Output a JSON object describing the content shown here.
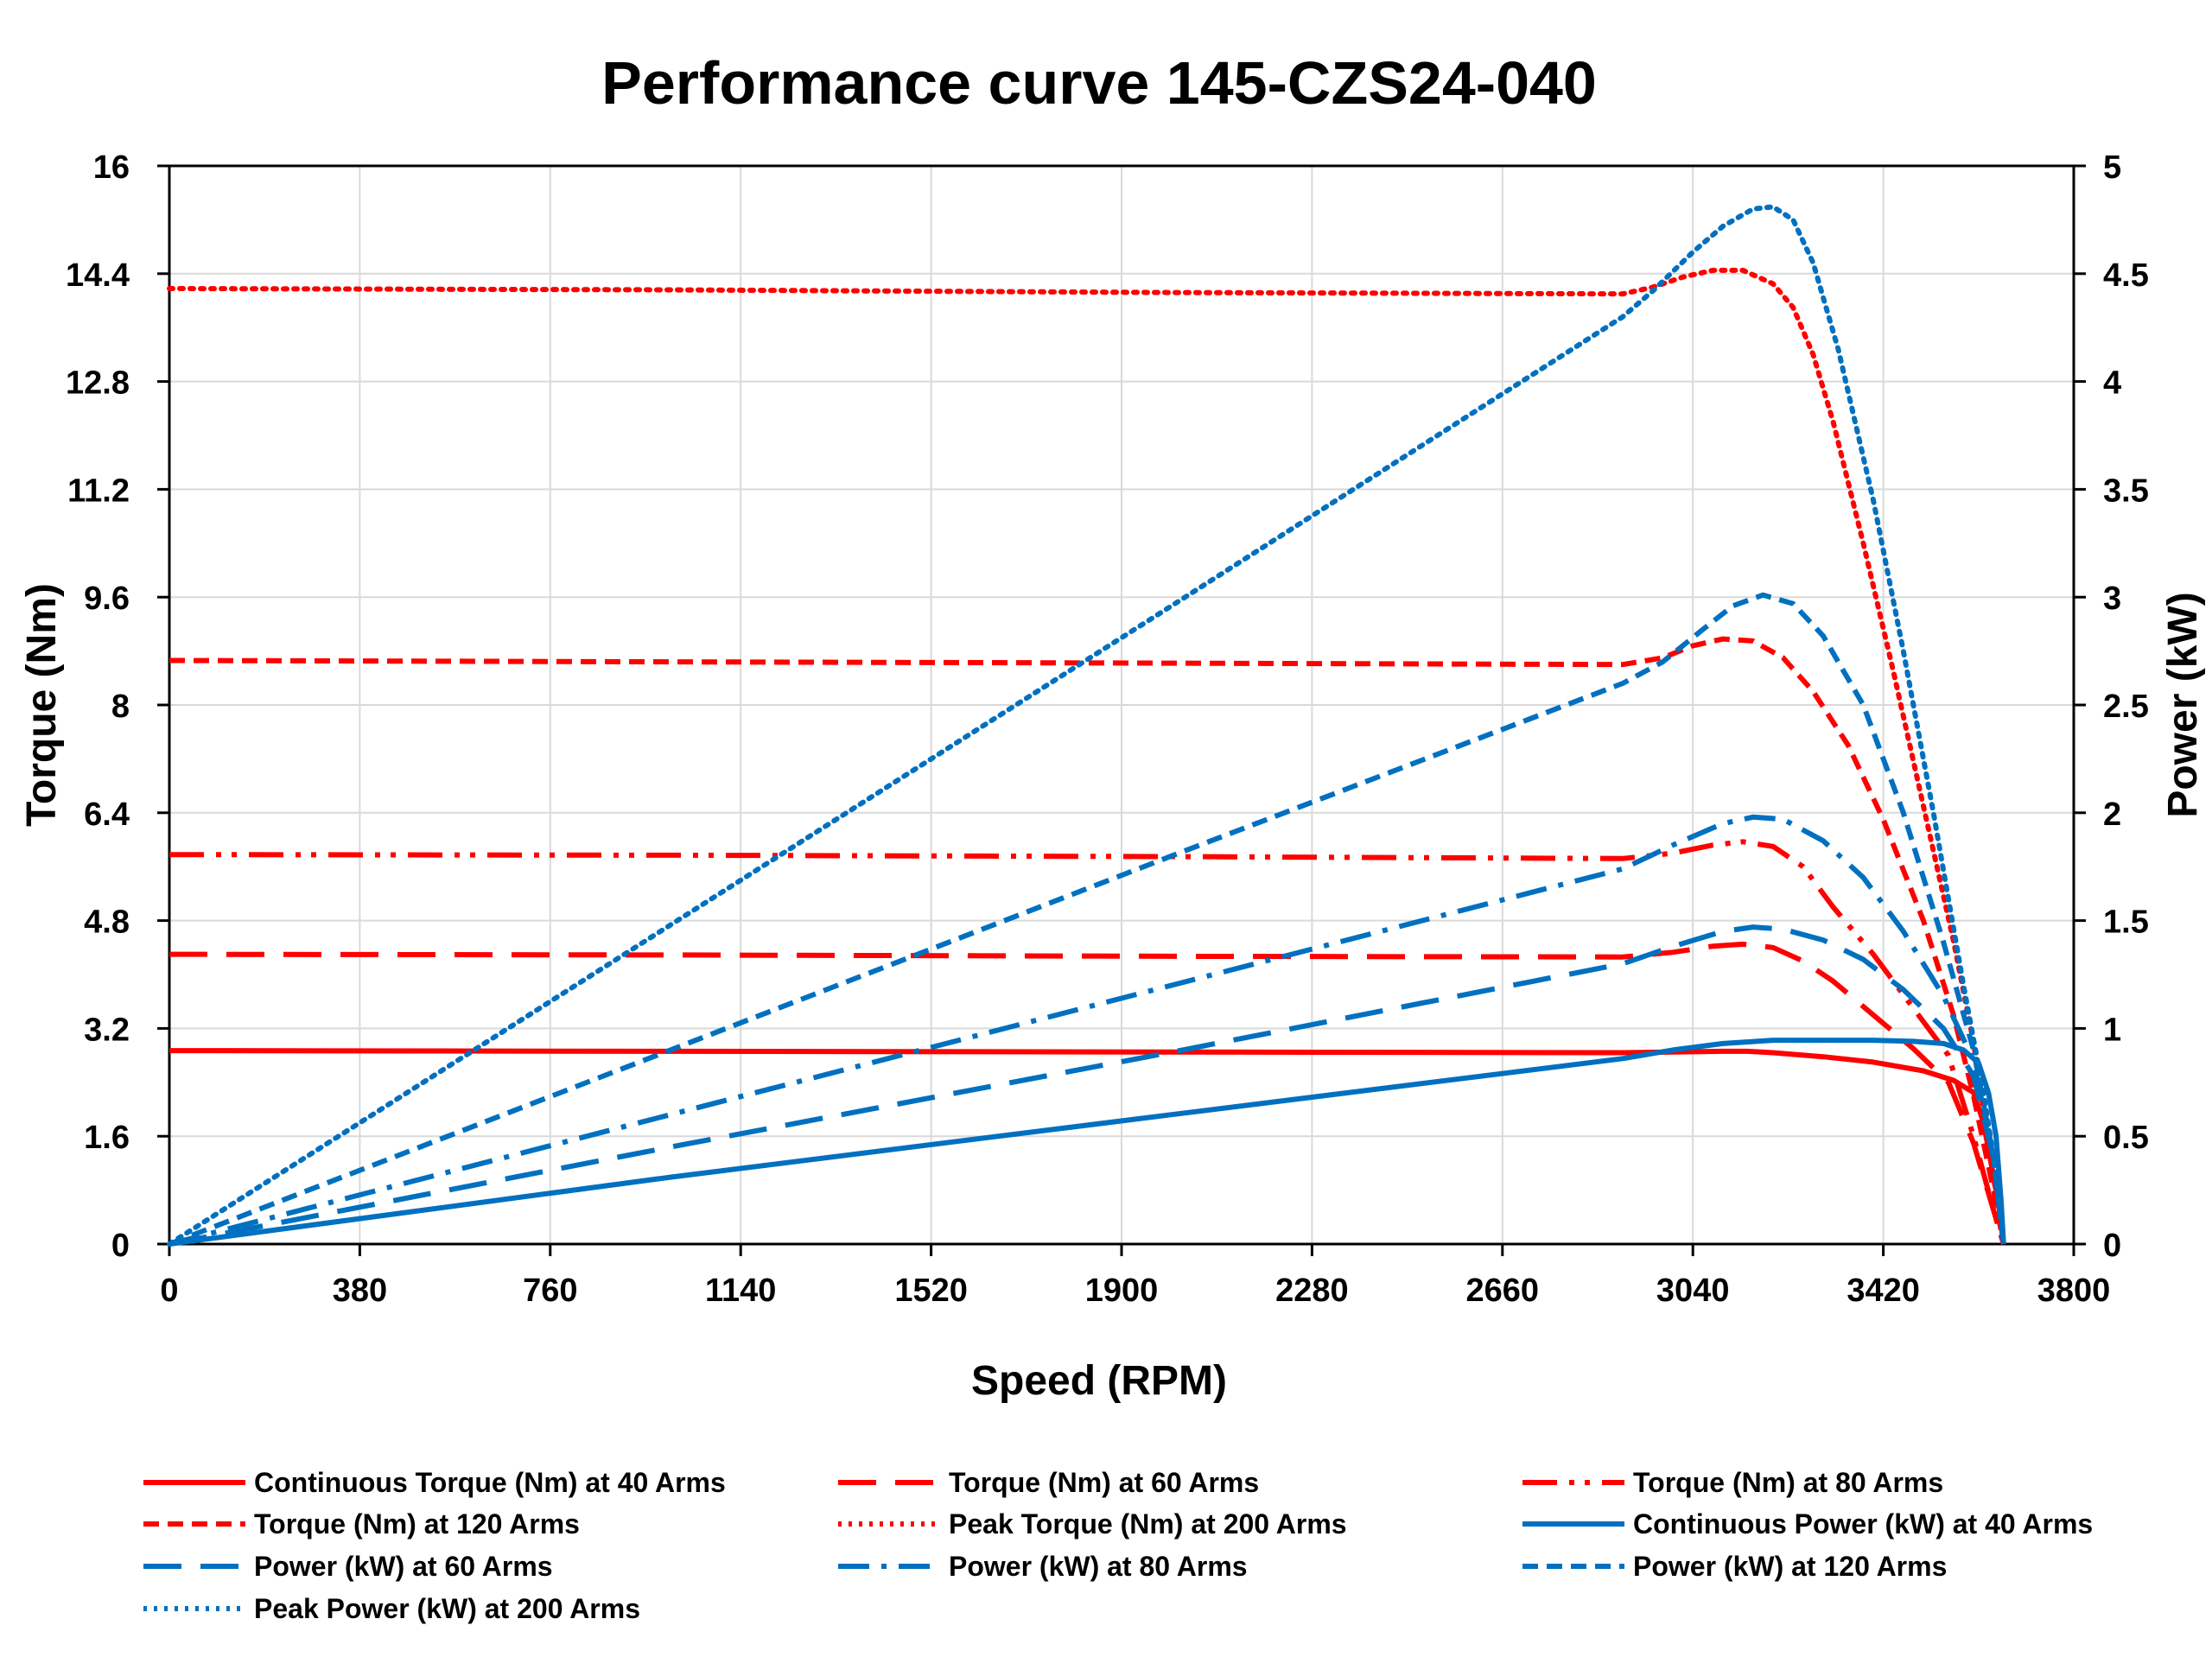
{
  "chart_data": {
    "type": "line",
    "title": "Performance curve 145-CZS24-040",
    "xlabel": "Speed (RPM)",
    "ylabel": "Torque (Nm)",
    "y2label": "Power (kW)",
    "xlim": [
      0,
      3800
    ],
    "ylim": [
      0,
      16
    ],
    "y2lim": [
      0,
      5
    ],
    "xticks": [
      "0",
      "380",
      "760",
      "1140",
      "1520",
      "1900",
      "2280",
      "2660",
      "3040",
      "3420",
      "3800"
    ],
    "yticks": [
      "0",
      "1.6",
      "3.2",
      "4.8",
      "6.4",
      "8",
      "9.6",
      "11.2",
      "12.8",
      "14.4",
      "16"
    ],
    "y2ticks": [
      "0",
      "0.5",
      "1",
      "1.5",
      "2",
      "2.5",
      "3",
      "3.5",
      "4",
      "4.5",
      "5"
    ],
    "legend_position": "bottom",
    "series": [
      {
        "name": "Continuous Torque (Nm) at 40 Arms",
        "axis": "left",
        "color": "#ff0000",
        "dash": "solid",
        "x": [
          0,
          1000,
          2000,
          2900,
          3000,
          3100,
          3150,
          3200,
          3300,
          3400,
          3500,
          3560,
          3600,
          3620,
          3635,
          3650,
          3660
        ],
        "y": [
          2.87,
          2.86,
          2.85,
          2.84,
          2.85,
          2.86,
          2.86,
          2.84,
          2.78,
          2.7,
          2.57,
          2.43,
          2.25,
          1.8,
          1.2,
          0.6,
          0
        ]
      },
      {
        "name": "Torque (Nm) at 60 Arms",
        "axis": "left",
        "color": "#ff0000",
        "dash": "long",
        "x": [
          0,
          1000,
          2000,
          2900,
          3000,
          3080,
          3140,
          3200,
          3260,
          3320,
          3400,
          3480,
          3550,
          3600,
          3640,
          3660
        ],
        "y": [
          4.3,
          4.29,
          4.27,
          4.26,
          4.33,
          4.42,
          4.45,
          4.4,
          4.2,
          3.9,
          3.4,
          2.9,
          2.4,
          1.5,
          0.5,
          0
        ]
      },
      {
        "name": "Torque (Nm) at 80 Arms",
        "axis": "left",
        "color": "#ff0000",
        "dash": "dashdotdot",
        "x": [
          0,
          1000,
          2000,
          2900,
          3000,
          3080,
          3140,
          3200,
          3260,
          3320,
          3400,
          3480,
          3550,
          3600,
          3640,
          3660
        ],
        "y": [
          5.78,
          5.77,
          5.75,
          5.72,
          5.8,
          5.92,
          5.97,
          5.9,
          5.6,
          5.0,
          4.3,
          3.5,
          2.8,
          1.6,
          0.5,
          0
        ]
      },
      {
        "name": "Torque (Nm) at 120 Arms",
        "axis": "left",
        "color": "#ff0000",
        "dash": "dash",
        "x": [
          0,
          1000,
          2000,
          2900,
          2980,
          3040,
          3100,
          3160,
          3220,
          3280,
          3350,
          3420,
          3500,
          3560,
          3600,
          3640,
          3660
        ],
        "y": [
          8.66,
          8.64,
          8.62,
          8.6,
          8.7,
          8.88,
          8.98,
          8.95,
          8.7,
          8.2,
          7.4,
          6.3,
          4.8,
          3.4,
          2.2,
          0.8,
          0
        ]
      },
      {
        "name": "Peak Torque (Nm) at 200 Arms",
        "axis": "left",
        "color": "#ff0000",
        "dash": "dot",
        "x": [
          0,
          1000,
          2000,
          2900,
          2960,
          3020,
          3080,
          3140,
          3200,
          3240,
          3280,
          3320,
          3380,
          3440,
          3500,
          3560,
          3600,
          3640,
          3660
        ],
        "y": [
          14.18,
          14.16,
          14.12,
          14.1,
          14.2,
          14.35,
          14.45,
          14.45,
          14.25,
          13.9,
          13.2,
          12.2,
          10.4,
          8.5,
          6.5,
          4.5,
          3.0,
          1.0,
          0
        ]
      },
      {
        "name": "Continuous Power (kW) at 40 Arms",
        "axis": "right",
        "color": "#0070c0",
        "dash": "solid",
        "x": [
          0,
          1000,
          2000,
          2900,
          3000,
          3100,
          3200,
          3300,
          3400,
          3480,
          3540,
          3580,
          3610,
          3630,
          3645,
          3655,
          3660
        ],
        "y": [
          0,
          0.31,
          0.6,
          0.86,
          0.9,
          0.93,
          0.945,
          0.945,
          0.945,
          0.94,
          0.93,
          0.9,
          0.84,
          0.7,
          0.5,
          0.2,
          0
        ]
      },
      {
        "name": "Power (kW) at 60 Arms",
        "axis": "right",
        "color": "#0070c0",
        "dash": "long",
        "x": [
          0,
          1000,
          2000,
          2900,
          3000,
          3100,
          3160,
          3220,
          3300,
          3380,
          3460,
          3540,
          3600,
          3640,
          3660
        ],
        "y": [
          0,
          0.45,
          0.89,
          1.3,
          1.38,
          1.45,
          1.47,
          1.46,
          1.41,
          1.32,
          1.18,
          1.0,
          0.78,
          0.4,
          0
        ]
      },
      {
        "name": "Power (kW) at 80 Arms",
        "axis": "right",
        "color": "#0070c0",
        "dash": "dashdot",
        "x": [
          0,
          1000,
          2000,
          2900,
          3000,
          3100,
          3160,
          3220,
          3300,
          3380,
          3460,
          3540,
          3600,
          3640,
          3660
        ],
        "y": [
          0,
          0.6,
          1.2,
          1.74,
          1.85,
          1.95,
          1.98,
          1.97,
          1.87,
          1.7,
          1.45,
          1.15,
          0.85,
          0.4,
          0
        ]
      },
      {
        "name": "Power (kW) at 120 Arms",
        "axis": "right",
        "color": "#0070c0",
        "dash": "dash",
        "x": [
          0,
          1000,
          2000,
          2900,
          2980,
          3060,
          3120,
          3180,
          3240,
          3300,
          3380,
          3460,
          3540,
          3600,
          3640,
          3660
        ],
        "y": [
          0,
          0.9,
          1.8,
          2.6,
          2.7,
          2.85,
          2.96,
          3.01,
          2.97,
          2.82,
          2.5,
          2.0,
          1.4,
          0.9,
          0.4,
          0
        ]
      },
      {
        "name": "Peak Power (kW) at 200 Arms",
        "axis": "right",
        "color": "#0070c0",
        "dash": "dot",
        "x": [
          0,
          1000,
          2000,
          2900,
          2960,
          3040,
          3100,
          3160,
          3200,
          3240,
          3280,
          3330,
          3400,
          3460,
          3520,
          3580,
          3620,
          3650,
          3660
        ],
        "y": [
          0,
          1.48,
          2.96,
          4.3,
          4.42,
          4.6,
          4.72,
          4.8,
          4.81,
          4.75,
          4.55,
          4.15,
          3.45,
          2.75,
          2.0,
          1.2,
          0.7,
          0.25,
          0
        ]
      }
    ]
  }
}
